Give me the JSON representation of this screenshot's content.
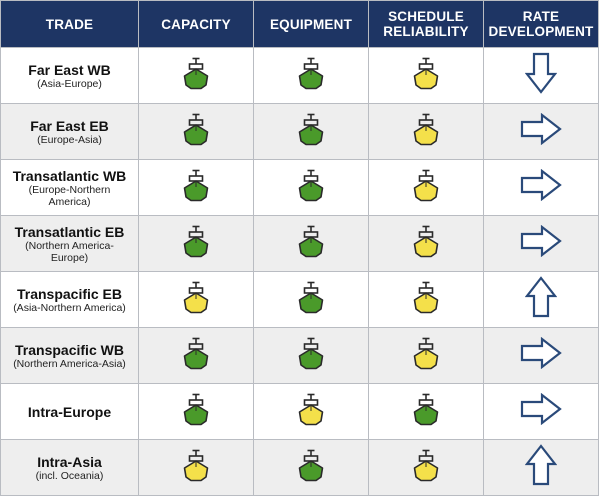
{
  "headers": {
    "trade": [
      "TRADE"
    ],
    "capacity": [
      "CAPACITY"
    ],
    "equipment": [
      "EQUIPMENT"
    ],
    "schedule": [
      "SCHEDULE",
      "RELIABILITY"
    ],
    "rate": [
      "RATE",
      "DEVELOPMENT"
    ]
  },
  "colors": {
    "header_bg": "#1e3564",
    "green": "#4a9a2a",
    "yellow": "#f4e04a",
    "arrow_outline": "#2a4a7a"
  },
  "rows": [
    {
      "name": "Far East WB",
      "sub": "(Asia-Europe)",
      "capacity": "green",
      "equipment": "green",
      "schedule": "yellow",
      "rate": "down"
    },
    {
      "name": "Far East EB",
      "sub": "(Europe-Asia)",
      "capacity": "green",
      "equipment": "green",
      "schedule": "yellow",
      "rate": "right"
    },
    {
      "name": "Transatlantic WB",
      "sub": "(Europe-Northern America)",
      "capacity": "green",
      "equipment": "green",
      "schedule": "yellow",
      "rate": "right"
    },
    {
      "name": "Transatlantic EB",
      "sub": "(Northern America-Europe)",
      "capacity": "green",
      "equipment": "green",
      "schedule": "yellow",
      "rate": "right"
    },
    {
      "name": "Transpacific EB",
      "sub": "(Asia-Northern America)",
      "capacity": "yellow",
      "equipment": "green",
      "schedule": "yellow",
      "rate": "up"
    },
    {
      "name": "Transpacific WB",
      "sub": "(Northern America-Asia)",
      "capacity": "green",
      "equipment": "green",
      "schedule": "yellow",
      "rate": "right"
    },
    {
      "name": "Intra-Europe",
      "sub": "",
      "capacity": "green",
      "equipment": "yellow",
      "schedule": "green",
      "rate": "right"
    },
    {
      "name": "Intra-Asia",
      "sub": "(incl. Oceania)",
      "capacity": "yellow",
      "equipment": "green",
      "schedule": "yellow",
      "rate": "up"
    }
  ]
}
